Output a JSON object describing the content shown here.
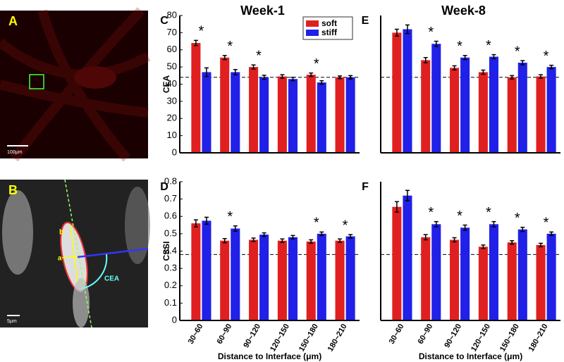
{
  "images": [
    {
      "panel": "A",
      "scale_bar": "100μm"
    },
    {
      "panel": "B",
      "scale_bar": "5μm",
      "annotations": [
        "a",
        "b",
        "CEA"
      ]
    }
  ],
  "chart_data": [
    {
      "type": "bar",
      "panel": "C",
      "title": "Week-1",
      "y_label": "CEA",
      "ylim": [
        0,
        80
      ],
      "yticks": [
        0,
        10,
        20,
        30,
        40,
        50,
        60,
        70,
        80
      ],
      "reference_line": 44,
      "legend": "top-right",
      "series": [
        {
          "name": "soft",
          "color": "#e02020",
          "values": [
            64,
            55.5,
            50,
            44.5,
            45.5,
            44
          ],
          "errors": [
            1.5,
            1.2,
            1.2,
            1,
            1,
            0.8
          ]
        },
        {
          "name": "stiff",
          "color": "#2020e8",
          "values": [
            47,
            47,
            44,
            43,
            41,
            44
          ],
          "errors": [
            2.5,
            1.5,
            1.2,
            1,
            1,
            1
          ]
        }
      ],
      "significance": [
        "*",
        "*",
        "*",
        null,
        "*",
        null
      ]
    },
    {
      "type": "bar",
      "panel": "D",
      "y_label": "CSSI",
      "x_label": "Distance to Interface (μm)",
      "ylim": [
        0,
        0.8
      ],
      "yticks": [
        0,
        0.1,
        0.2,
        0.3,
        0.4,
        0.5,
        0.6,
        0.7,
        0.8
      ],
      "reference_line": 0.38,
      "categories": [
        "30~60",
        "60~90",
        "90~120",
        "120~150",
        "150~180",
        "180~210"
      ],
      "series": [
        {
          "color": "#e02020",
          "values": [
            0.56,
            0.46,
            0.465,
            0.46,
            0.455,
            0.46
          ],
          "errors": [
            0.02,
            0.012,
            0.01,
            0.01,
            0.01,
            0.01
          ]
        },
        {
          "color": "#2020e8",
          "values": [
            0.575,
            0.53,
            0.495,
            0.48,
            0.5,
            0.485
          ],
          "errors": [
            0.02,
            0.015,
            0.01,
            0.01,
            0.01,
            0.01
          ]
        }
      ],
      "significance": [
        null,
        "*",
        null,
        null,
        "*",
        "*"
      ]
    },
    {
      "type": "bar",
      "panel": "E",
      "title": "Week-8",
      "ylim": [
        0,
        80
      ],
      "reference_line": 44,
      "series": [
        {
          "color": "#e02020",
          "values": [
            70,
            54,
            49.5,
            47,
            44,
            44.5
          ],
          "errors": [
            2,
            1.5,
            1.2,
            1.2,
            1,
            1
          ]
        },
        {
          "color": "#2020e8",
          "values": [
            72,
            63.5,
            55.5,
            56,
            52.5,
            50
          ],
          "errors": [
            2.5,
            1.5,
            1.2,
            1.2,
            1.2,
            1
          ]
        }
      ],
      "significance": [
        null,
        "*",
        "*",
        "*",
        "*",
        "*"
      ]
    },
    {
      "type": "bar",
      "panel": "F",
      "x_label": "Distance to Interface (μm)",
      "ylim": [
        0,
        0.8
      ],
      "reference_line": 0.38,
      "categories": [
        "30~60",
        "60~90",
        "90~120",
        "120~150",
        "150~180",
        "180~210"
      ],
      "series": [
        {
          "color": "#e02020",
          "values": [
            0.655,
            0.48,
            0.465,
            0.425,
            0.45,
            0.435
          ],
          "errors": [
            0.03,
            0.015,
            0.012,
            0.01,
            0.01,
            0.01
          ]
        },
        {
          "color": "#2020e8",
          "values": [
            0.72,
            0.555,
            0.535,
            0.555,
            0.525,
            0.5
          ],
          "errors": [
            0.03,
            0.015,
            0.015,
            0.015,
            0.012,
            0.01
          ]
        }
      ],
      "significance": [
        null,
        "*",
        "*",
        "*",
        "*",
        "*"
      ]
    }
  ]
}
